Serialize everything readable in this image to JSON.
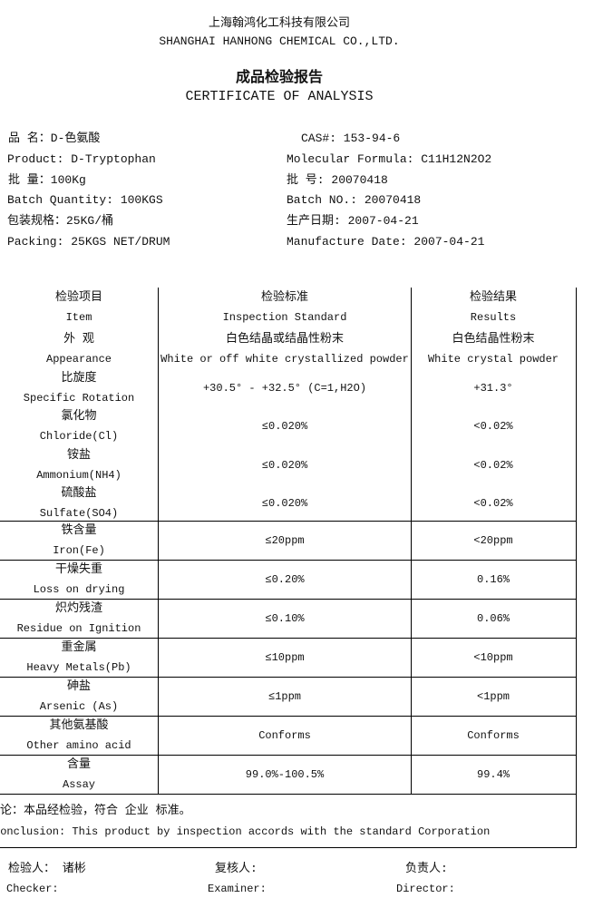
{
  "header": {
    "company_cn": "上海翰鸿化工科技有限公司",
    "company_en": "SHANGHAI HANHONG CHEMICAL CO.,LTD.",
    "title_cn": "成品检验报告",
    "title_en": "CERTIFICATE OF ANALYSIS"
  },
  "info": {
    "product_cn": "品    名：D-色氨酸",
    "cas": "CAS#:  153-94-6",
    "product_en": "Product: D-Tryptophan",
    "formula": "Molecular Formula: C11H12N2O2",
    "qty_cn": "批    量：100Kg",
    "batch_cn": "批     号:   20070418",
    "qty_en": "Batch Quantity: 100KGS",
    "batch_en": "Batch NO.:  20070418",
    "pack_cn": "包装规格：25KG/桶",
    "date_cn": "生产日期:   2007-04-21",
    "pack_en": "Packing: 25KGS NET/DRUM",
    "date_en": "Manufacture Date: 2007-04-21"
  },
  "table": {
    "headers": [
      {
        "cn": "检验项目",
        "en": "Item"
      },
      {
        "cn": "检验标准",
        "en": "Inspection Standard"
      },
      {
        "cn": "检验结果",
        "en": "Results"
      }
    ],
    "rows": [
      {
        "cn": "外  观",
        "en": "Appearance",
        "std_cn": "白色结晶或结晶性粉末",
        "std": "White or off white crystallized powder",
        "res_cn": "白色结晶性粉末",
        "res": "White crystal powder"
      },
      {
        "cn": "比旋度",
        "en": "Specific Rotation",
        "std": "+30.5° - +32.5° (C=1,H2O)",
        "res": "+31.3°"
      },
      {
        "cn": "氯化物",
        "en": "Chloride(Cl)",
        "std": "≤0.020%",
        "res": "<0.02%"
      },
      {
        "cn": "铵盐",
        "en": "Ammonium(NH4)",
        "std": "≤0.020%",
        "res": "<0.02%"
      },
      {
        "cn": "硫酸盐",
        "en": "Sulfate(SO4)",
        "std": "≤0.020%",
        "res": "<0.02%"
      },
      {
        "cn": "铁含量",
        "en": "Iron(Fe)",
        "std": "≤20ppm",
        "res": "<20ppm"
      },
      {
        "cn": "干燥失重",
        "en": "Loss on drying",
        "std": "≤0.20%",
        "res": "0.16%"
      },
      {
        "cn": "炽灼残渣",
        "en": "Residue on Ignition",
        "std": "≤0.10%",
        "res": "0.06%"
      },
      {
        "cn": "重金属",
        "en": "Heavy Metals(Pb)",
        "std": "≤10ppm",
        "res": "<10ppm"
      },
      {
        "cn": "砷盐",
        "en": "Arsenic (As)",
        "std": "≤1ppm",
        "res": "<1ppm"
      },
      {
        "cn": "其他氨基酸",
        "en": "Other amino acid",
        "std": "Conforms",
        "res": "Conforms"
      },
      {
        "cn": "含量",
        "en": "Assay",
        "std": "99.0%-100.5%",
        "res": "99.4%"
      }
    ]
  },
  "conclusion": {
    "cn": "结论：本品经检验，符合  企业 标准。",
    "en": "Conclusion: This product by inspection accords with the standard Corporation"
  },
  "signatures": {
    "checker_cn": "检验人：  诸彬",
    "checker_en": "Checker:",
    "examiner_cn": "复核人:",
    "examiner_en": "Examiner:",
    "director_cn": "负责人:",
    "director_en": "Director:"
  }
}
